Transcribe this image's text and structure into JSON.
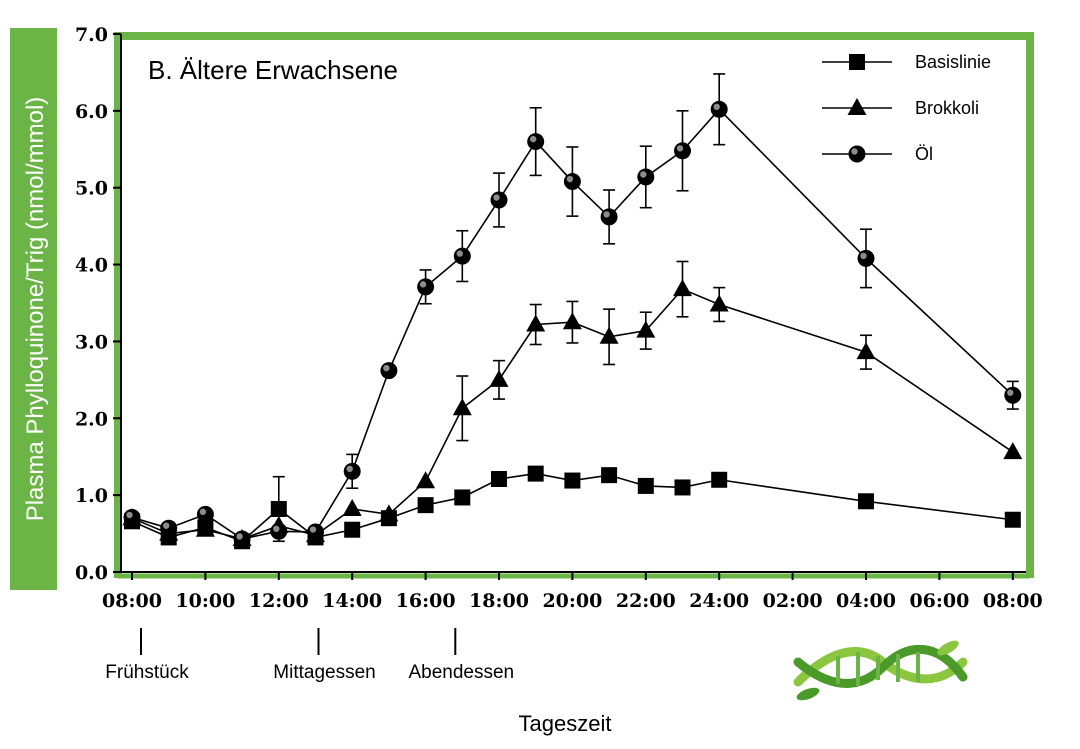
{
  "chart_data": {
    "type": "line",
    "title": "B. Ältere Erwachsene",
    "xlabel": "Tageszeit",
    "ylabel": "Plasma Phylloquinone/Trig (nmol/mmol)",
    "ylim": [
      0,
      7
    ],
    "y_ticks": [
      "0.0",
      "1.0",
      "2.0",
      "3.0",
      "4.0",
      "5.0",
      "6.0",
      "7.0"
    ],
    "x_ticks": [
      "08:00",
      "10:00",
      "12:00",
      "14:00",
      "16:00",
      "18:00",
      "20:00",
      "22:00",
      "24:00",
      "02:00",
      "04:00",
      "06:00",
      "08:00"
    ],
    "x_hours_note": "hours since first 08:00 tick",
    "legend_position": "top-right",
    "series": [
      {
        "name": "Basislinie",
        "marker": "square",
        "x": [
          0,
          1,
          2,
          3,
          4,
          5,
          6,
          7,
          8,
          9,
          10,
          11,
          12,
          13,
          14,
          15,
          16,
          20,
          24
        ],
        "values": [
          0.66,
          0.45,
          0.58,
          0.4,
          0.82,
          0.45,
          0.55,
          0.7,
          0.87,
          0.97,
          1.21,
          1.28,
          1.19,
          1.26,
          1.12,
          1.1,
          1.2,
          0.92,
          0.68
        ],
        "errors": [
          0,
          0,
          0,
          0,
          0.42,
          0,
          0,
          0,
          0,
          0,
          0,
          0,
          0,
          0,
          0,
          0,
          0,
          0,
          0
        ]
      },
      {
        "name": "Brokkoli",
        "marker": "triangle",
        "x": [
          0,
          1,
          2,
          3,
          4,
          5,
          6,
          7,
          8,
          9,
          10,
          11,
          12,
          13,
          14,
          15,
          16,
          20,
          24
        ],
        "values": [
          0.7,
          0.5,
          0.55,
          0.43,
          0.6,
          0.48,
          0.82,
          0.75,
          1.18,
          2.13,
          2.5,
          3.22,
          3.25,
          3.06,
          3.14,
          3.68,
          3.48,
          2.86,
          1.56
        ],
        "errors": [
          0,
          0,
          0,
          0,
          0,
          0,
          0,
          0,
          0,
          0.42,
          0.25,
          0.26,
          0.27,
          0.36,
          0.24,
          0.36,
          0.22,
          0.22,
          0
        ]
      },
      {
        "name": "Öl",
        "marker": "circle",
        "x": [
          0,
          1,
          2,
          3,
          4,
          5,
          6,
          7,
          8,
          9,
          10,
          11,
          12,
          13,
          14,
          15,
          16,
          20,
          24
        ],
        "values": [
          0.71,
          0.57,
          0.75,
          0.43,
          0.53,
          0.52,
          1.31,
          2.62,
          3.71,
          4.11,
          4.84,
          5.6,
          5.08,
          4.62,
          5.14,
          5.48,
          6.02,
          4.08,
          2.3
        ],
        "errors": [
          0,
          0,
          0,
          0,
          0,
          0,
          0.22,
          0,
          0.22,
          0.33,
          0.35,
          0.44,
          0.45,
          0.35,
          0.4,
          0.52,
          0.46,
          0.38,
          0.18
        ]
      }
    ],
    "annotations": [
      {
        "label": "Frühstück",
        "x": 0
      },
      {
        "label": "Mittagessen",
        "x": 5
      },
      {
        "label": "Abendessen",
        "x": 9
      }
    ]
  },
  "colors": {
    "accent_green": "#6bb446",
    "ink": "#000000"
  },
  "logo": {
    "icon": "dna-leaf-logo-icon"
  }
}
